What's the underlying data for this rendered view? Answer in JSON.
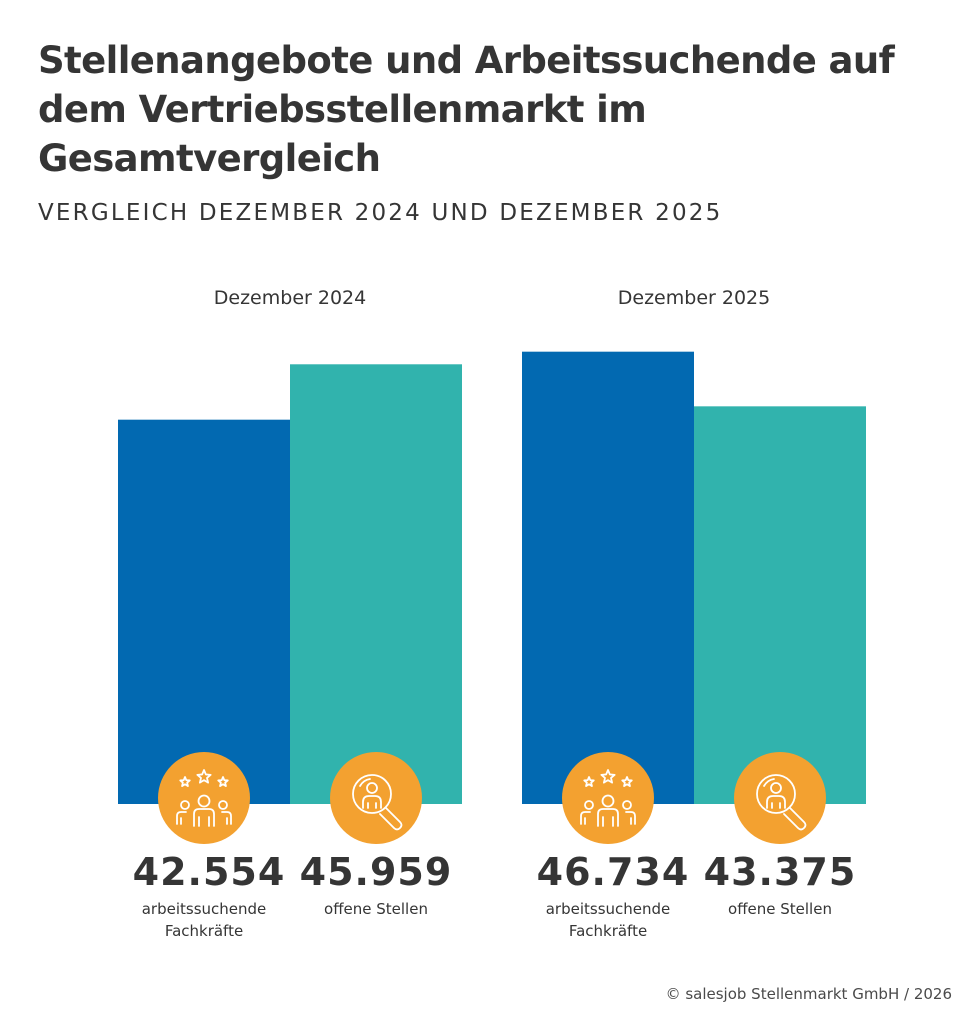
{
  "header": {
    "title": "Stellenangebote und Arbeitssuchende auf dem Vertriebsstellenmarkt im Gesamtvergleich",
    "subtitle": "VERGLEICH DEZEMBER 2024 UND DEZEMBER 2025"
  },
  "colors": {
    "arbeitssuchende": "#0269b1",
    "offene_stellen": "#31b3ad",
    "icon_circle": "#f3a130",
    "text": "#353535"
  },
  "chart_data": {
    "type": "bar",
    "title": "Stellenangebote und Arbeitssuchende auf dem Vertriebsstellenmarkt im Gesamtvergleich",
    "subtitle": "VERGLEICH DEZEMBER 2024 UND DEZEMBER 2025",
    "categories": [
      "Dezember 2024",
      "Dezember 2025"
    ],
    "series": [
      {
        "name": "arbeitssuchende Fachkräfte",
        "values": [
          42554,
          46734
        ],
        "labels": [
          "42.554",
          "46.734"
        ],
        "icon": "people-stars-icon"
      },
      {
        "name": "offene Stellen",
        "values": [
          45959,
          43375
        ],
        "labels": [
          "45.959",
          "43.375"
        ],
        "icon": "search-person-icon"
      }
    ],
    "xlabel": "",
    "ylabel": "",
    "ylim": [
      18930,
      47000
    ],
    "grid": false,
    "legend": "none"
  },
  "captions": {
    "arbeitssuchende": [
      "arbeitssuchende",
      "Fachkräfte"
    ],
    "offene_stellen": [
      "offene Stellen"
    ]
  },
  "footer": "© salesjob Stellenmarkt GmbH / 2026"
}
